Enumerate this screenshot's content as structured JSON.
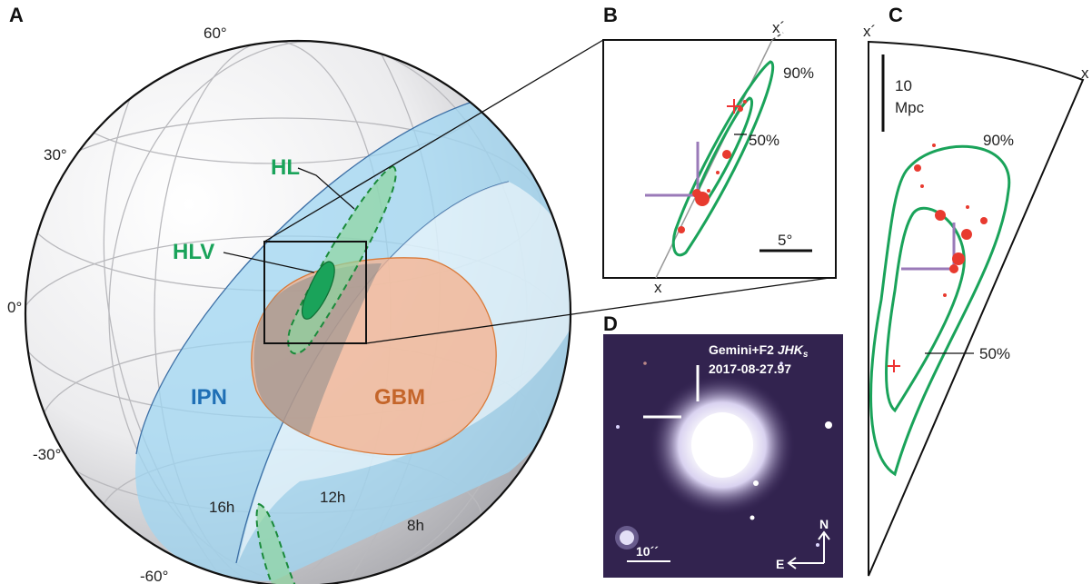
{
  "panels": {
    "a": "A",
    "b": "B",
    "c": "C",
    "d": "D"
  },
  "sphere": {
    "latitudes": [
      "60°",
      "30°",
      "0°",
      "-30°",
      "-60°"
    ],
    "longitudes": [
      "16h",
      "12h",
      "8h"
    ],
    "regions": {
      "hl": "HL",
      "hlv": "HLV",
      "ipn": "IPN",
      "gbm": "GBM"
    },
    "colors": {
      "ipn": "#9fd6f2",
      "gbm": "#f5b08c",
      "green": "#1aa35a",
      "sphere": "#e6e6e8"
    }
  },
  "panel_b": {
    "axis_start": "x",
    "axis_end": "x´",
    "contour_outer": "90%",
    "contour_inner": "50%",
    "scale": "5°"
  },
  "panel_c": {
    "axis_start": "x´",
    "axis_end": "x",
    "scale_value": "10",
    "scale_unit": "Mpc",
    "contour_outer": "90%",
    "contour_inner": "50%"
  },
  "panel_d": {
    "instrument": "Gemini+F2 ",
    "bands": "JHK",
    "band_sub": "s",
    "date": "2017-08-27.97",
    "scale": "10´´",
    "north": "N",
    "east": "E"
  }
}
